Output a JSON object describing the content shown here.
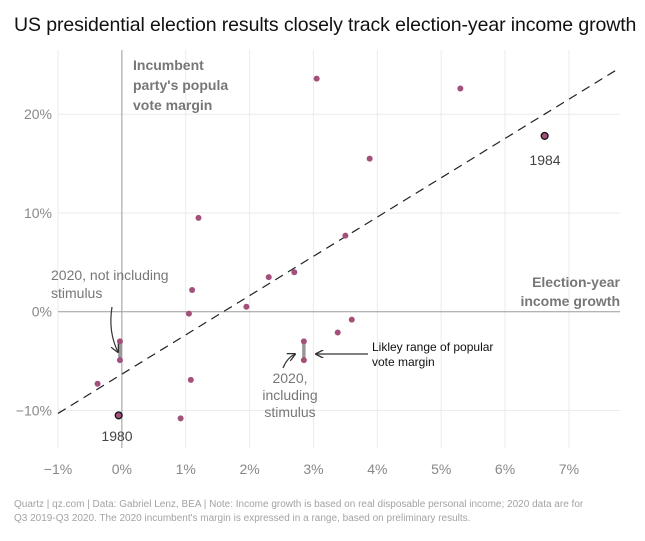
{
  "title": "US presidential election results closely track election-year income growth",
  "footer": {
    "line1": "Quartz | qz.com | Data: Gabriel Lenz, BEA | Note: Income growth is based on real disposable personal income; 2020 data are for",
    "line2": "Q3 2019-Q3 2020. The 2020 incumbent's margin is expressed in a range, based on preliminary results."
  },
  "chart_data": {
    "type": "scatter",
    "title": "US presidential election results closely track election-year income growth",
    "xlabel": "Election-year income growth",
    "ylabel": "Incumbent party's popular vote margin",
    "xlim": [
      -1.0,
      7.8
    ],
    "ylim": [
      -13.8,
      26.5
    ],
    "x_ticks": [
      -1,
      0,
      1,
      2,
      3,
      4,
      5,
      6,
      7
    ],
    "x_tick_labels": [
      "−1%",
      "0%",
      "1%",
      "2%",
      "3%",
      "4%",
      "5%",
      "6%",
      "7%"
    ],
    "y_ticks": [
      -10,
      0,
      10,
      20
    ],
    "y_tick_labels": [
      "−10%",
      "0%",
      "10%",
      "20%"
    ],
    "grid": true,
    "point_color": "#a3507a",
    "series": [
      {
        "name": "Elections",
        "points": [
          {
            "x": 3.05,
            "y": 23.6
          },
          {
            "x": 5.3,
            "y": 22.6
          },
          {
            "x": 6.62,
            "y": 17.8,
            "label": "1984"
          },
          {
            "x": 3.88,
            "y": 15.5
          },
          {
            "x": 1.2,
            "y": 9.5
          },
          {
            "x": 3.5,
            "y": 7.7
          },
          {
            "x": 2.7,
            "y": 4.0
          },
          {
            "x": 2.3,
            "y": 3.5
          },
          {
            "x": 1.1,
            "y": 2.2
          },
          {
            "x": 1.95,
            "y": 0.5
          },
          {
            "x": 1.05,
            "y": -0.2
          },
          {
            "x": 3.6,
            "y": -0.8
          },
          {
            "x": 3.38,
            "y": -2.1
          },
          {
            "x": 1.08,
            "y": -6.9
          },
          {
            "x": -0.38,
            "y": -7.3
          },
          {
            "x": 0.92,
            "y": -10.8
          },
          {
            "x": -0.05,
            "y": -10.5,
            "label": "1980"
          }
        ]
      },
      {
        "name": "2020 range",
        "ranges": [
          {
            "x": -0.03,
            "y_low": -4.9,
            "y_high": -3.0,
            "label": "2020, not including stimulus"
          },
          {
            "x": 2.85,
            "y_low": -4.9,
            "y_high": -3.0,
            "label": "2020, including stimulus"
          }
        ]
      }
    ],
    "trendline": {
      "x0": -1.0,
      "y0": -10.3,
      "x1": 7.8,
      "y1": 24.7
    },
    "annotations": [
      {
        "text": "Likley range of popular vote margin",
        "x": 2.85,
        "y": -3.9
      }
    ]
  }
}
